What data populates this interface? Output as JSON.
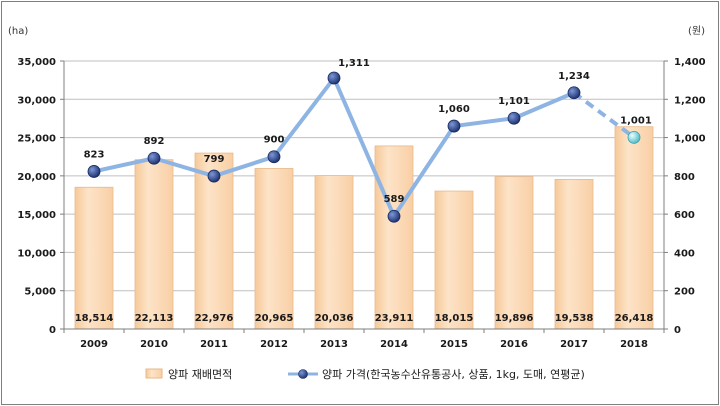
{
  "chart_data": {
    "type": "bar+line",
    "categories": [
      "2009",
      "2010",
      "2011",
      "2012",
      "2013",
      "2014",
      "2015",
      "2016",
      "2017",
      "2018"
    ],
    "left_unit": "(ha)",
    "right_unit": "(원)",
    "ylim_left": [
      0,
      35000
    ],
    "ylim_right": [
      0,
      1400
    ],
    "left_ticks": [
      "0",
      "5,000",
      "10,000",
      "15,000",
      "20,000",
      "25,000",
      "30,000",
      "35,000"
    ],
    "right_ticks": [
      "0",
      "200",
      "400",
      "600",
      "800",
      "1,000",
      "1,200",
      "1,400"
    ],
    "grid": true,
    "legend_position": "bottom",
    "series": [
      {
        "name": "양파 재배면적",
        "type": "bar",
        "axis": "left",
        "color": "#fcd9b4",
        "values": [
          18514,
          22113,
          22976,
          20965,
          20036,
          23911,
          18015,
          19896,
          19538,
          26418
        ],
        "labels": [
          "18,514",
          "22,113",
          "22,976",
          "20,965",
          "20,036",
          "23,911",
          "18,015",
          "19,896",
          "19,538",
          "26,418"
        ]
      },
      {
        "name": "양파 가격(한국농수산유통공사, 상품, 1kg, 도매, 연평균)",
        "type": "line",
        "axis": "right",
        "color": "#8eb4e3",
        "marker_color": "#1f3c88",
        "last_segment_dashed": true,
        "last_marker_color": "#7fd6d6",
        "values": [
          823,
          892,
          799,
          900,
          1311,
          589,
          1060,
          1101,
          1234,
          1001
        ],
        "labels": [
          "823",
          "892",
          "799",
          "900",
          "1,311",
          "589",
          "1,060",
          "1,101",
          "1,234",
          "1,001"
        ]
      }
    ]
  }
}
